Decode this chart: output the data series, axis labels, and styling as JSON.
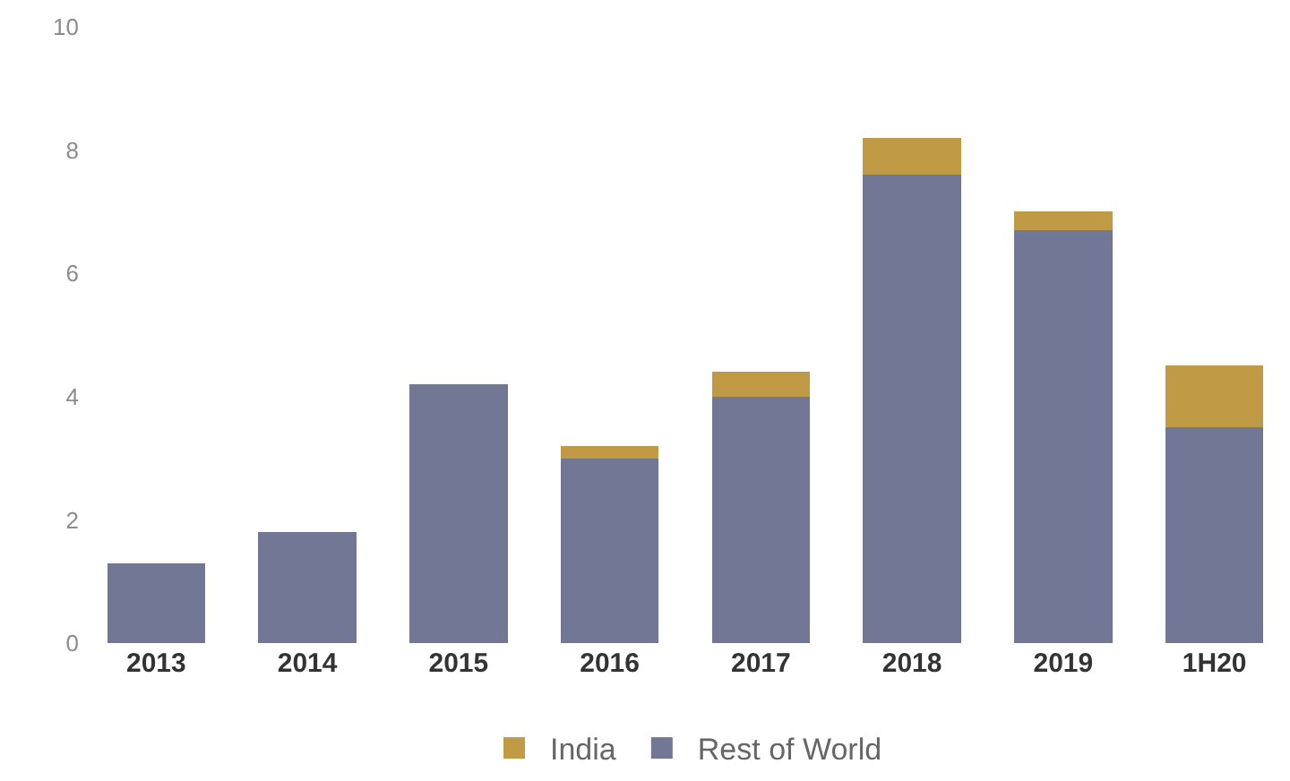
{
  "chart_data": {
    "type": "bar",
    "stacked": true,
    "categories": [
      "2013",
      "2014",
      "2015",
      "2016",
      "2017",
      "2018",
      "2019",
      "1H20"
    ],
    "series": [
      {
        "name": "Rest of World",
        "color": "#737796",
        "values": [
          1.3,
          1.8,
          4.2,
          3.0,
          4.0,
          7.6,
          6.7,
          3.5
        ]
      },
      {
        "name": "India",
        "color": "#c09a45",
        "values": [
          0,
          0,
          0,
          0.2,
          0.4,
          0.6,
          0.3,
          1.0
        ]
      }
    ],
    "ylim": [
      0,
      10
    ],
    "yticks": [
      0,
      2,
      4,
      6,
      8,
      10
    ],
    "grid": false,
    "legend": "bottom"
  }
}
